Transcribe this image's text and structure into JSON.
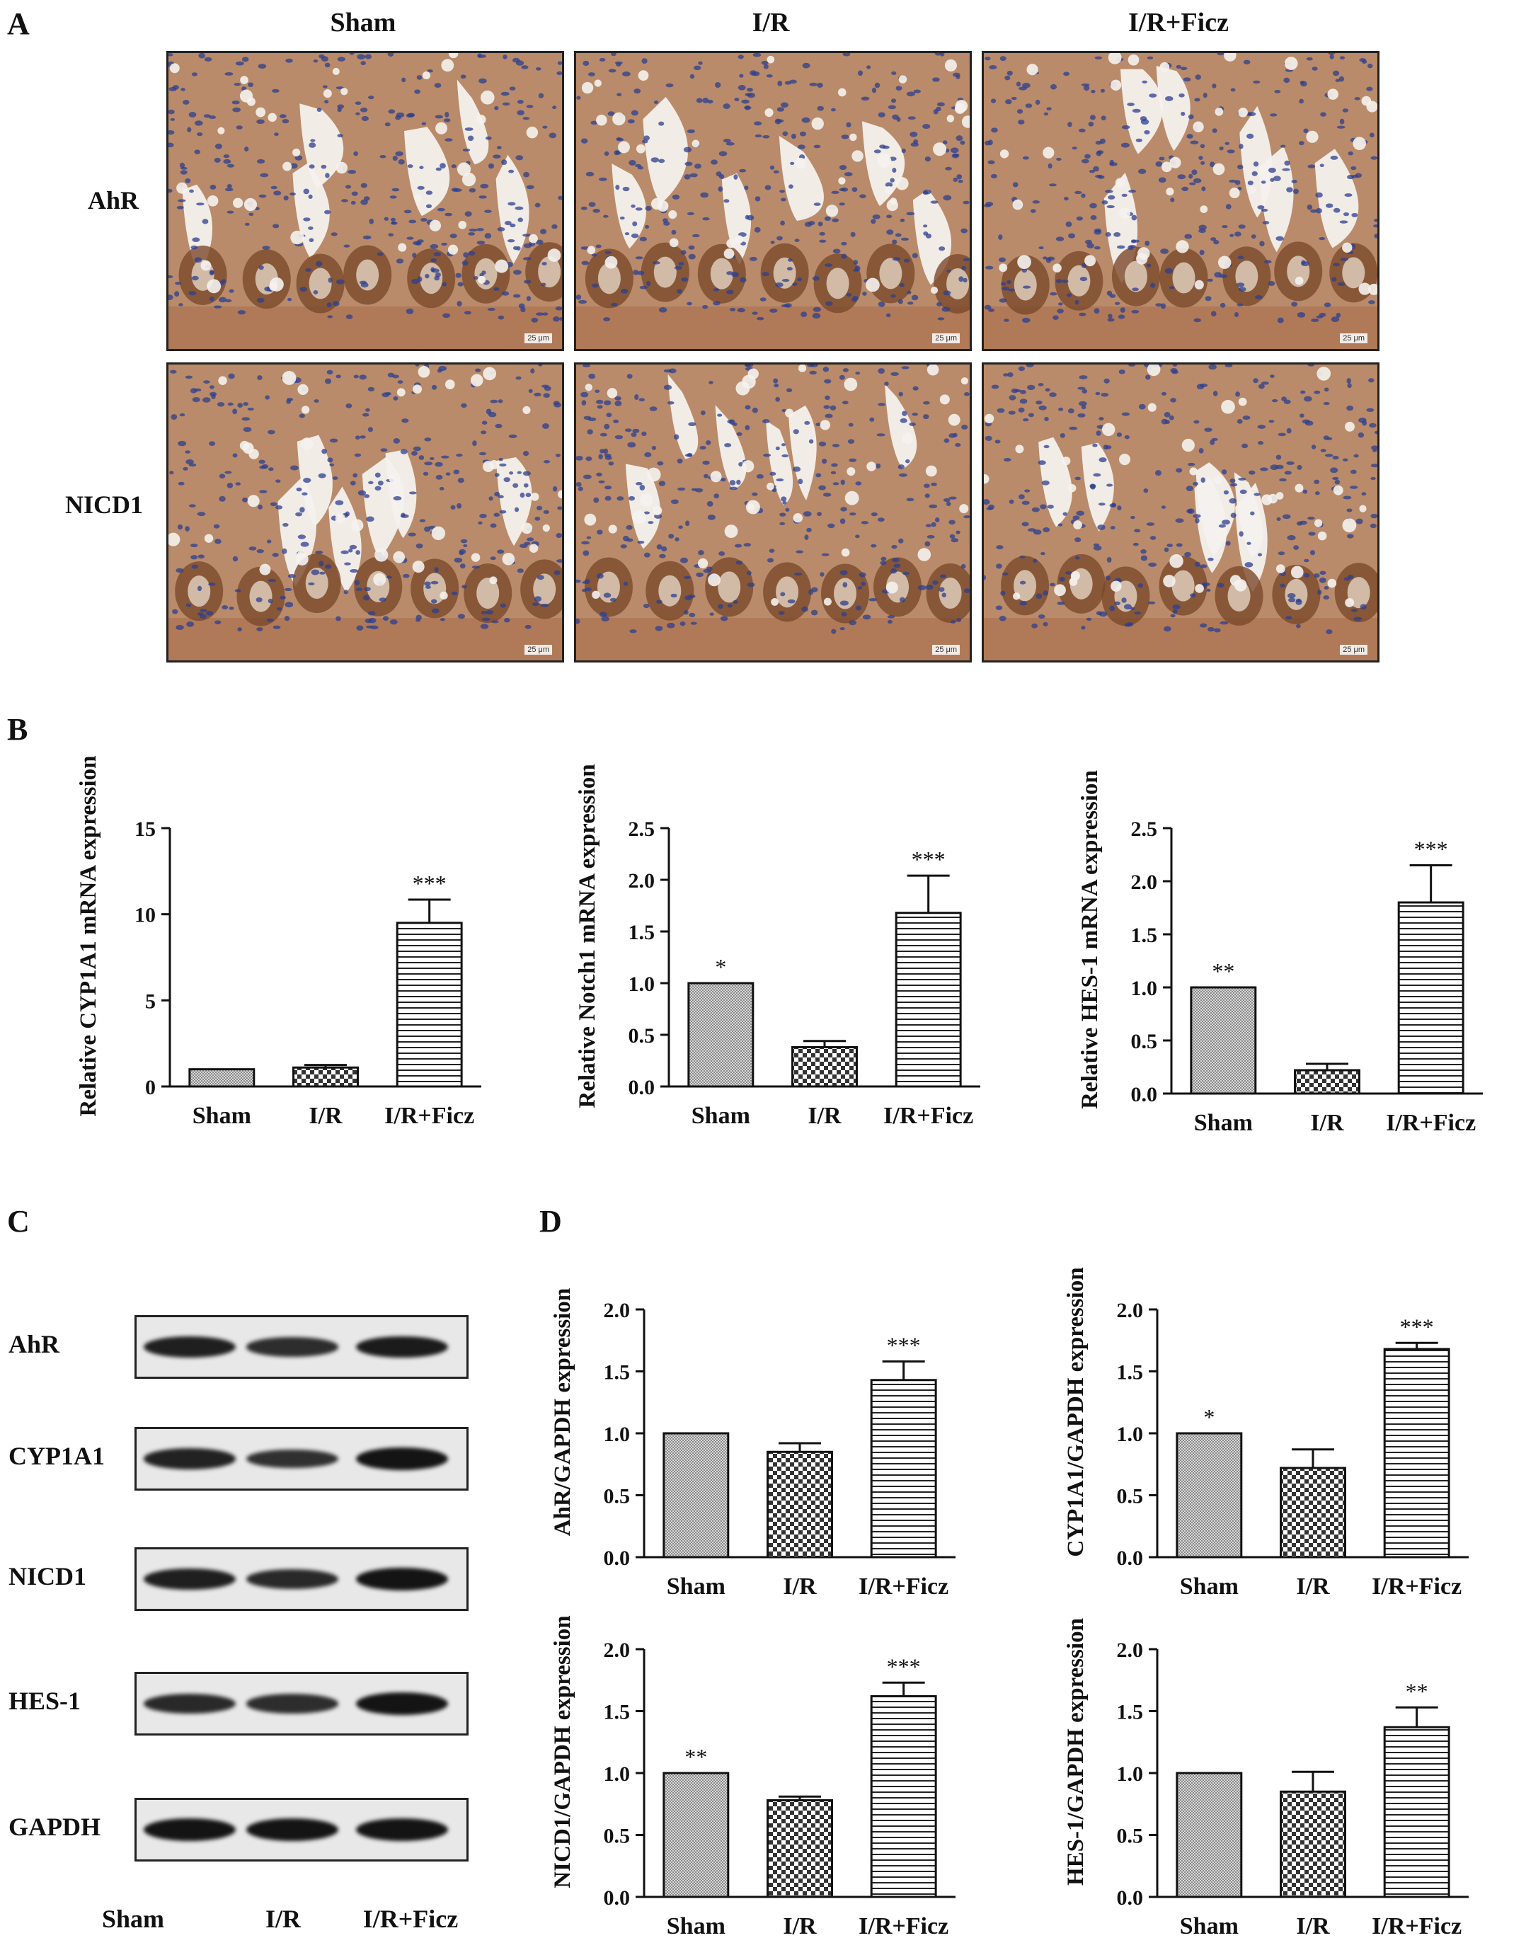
{
  "panels": {
    "a": "A",
    "b": "B",
    "c": "C",
    "d": "D"
  },
  "histology": {
    "columns": [
      "Sham",
      "I/R",
      "I/R+Ficz"
    ],
    "rows": [
      "AhR",
      "NICD1"
    ],
    "scale_label": "25 μm"
  },
  "colors": {
    "tissue_brown": "#9a5a32",
    "nuclei_blue": "#2c3f8f",
    "background": "#f4f1ee"
  },
  "chart_data": [
    {
      "type": "bar",
      "ylabel": "Relative CYP1A1 mRNA expression",
      "categories": [
        "Sham",
        "I/R",
        "I/R+Ficz"
      ],
      "values": [
        1.0,
        1.1,
        9.5
      ],
      "errors": [
        0,
        0.15,
        1.35
      ],
      "annotations": [
        "",
        "",
        "***"
      ],
      "ylim": [
        0,
        15
      ],
      "yticks": [
        0,
        5,
        10,
        15
      ],
      "ytick_labels": [
        "0",
        "5",
        "10",
        "15"
      ],
      "patterns": [
        "fine",
        "check",
        "hlines"
      ]
    },
    {
      "type": "bar",
      "ylabel": "Relative Notch1 mRNA expression",
      "categories": [
        "Sham",
        "I/R",
        "I/R+Ficz"
      ],
      "values": [
        1.0,
        0.38,
        1.68
      ],
      "errors": [
        0,
        0.06,
        0.36
      ],
      "annotations": [
        "*",
        "",
        "***"
      ],
      "ylim": [
        0,
        2.5
      ],
      "yticks": [
        0,
        0.5,
        1.0,
        1.5,
        2.0,
        2.5
      ],
      "ytick_labels": [
        "0.0",
        "0.5",
        "1.0",
        "1.5",
        "2.0",
        "2.5"
      ],
      "patterns": [
        "fine",
        "check",
        "hlines"
      ]
    },
    {
      "type": "bar",
      "ylabel": "Relative HES-1 mRNA expression",
      "categories": [
        "Sham",
        "I/R",
        "I/R+Ficz"
      ],
      "values": [
        1.0,
        0.22,
        1.8
      ],
      "errors": [
        0,
        0.06,
        0.35
      ],
      "annotations": [
        "**",
        "",
        "***"
      ],
      "ylim": [
        0,
        2.5
      ],
      "yticks": [
        0,
        0.5,
        1.0,
        1.5,
        2.0,
        2.5
      ],
      "ytick_labels": [
        "0.0",
        "0.5",
        "1.0",
        "1.5",
        "2.0",
        "2.5"
      ],
      "patterns": [
        "fine",
        "check",
        "hlines"
      ]
    },
    {
      "type": "bar",
      "ylabel": "AhR/GAPDH expression",
      "categories": [
        "Sham",
        "I/R",
        "I/R+Ficz"
      ],
      "values": [
        1.0,
        0.85,
        1.43
      ],
      "errors": [
        0,
        0.07,
        0.15
      ],
      "annotations": [
        "",
        "",
        "***"
      ],
      "ylim": [
        0,
        2.0
      ],
      "yticks": [
        0,
        0.5,
        1.0,
        1.5,
        2.0
      ],
      "ytick_labels": [
        "0.0",
        "0.5",
        "1.0",
        "1.5",
        "2.0"
      ],
      "patterns": [
        "fine",
        "check",
        "hlines"
      ]
    },
    {
      "type": "bar",
      "ylabel": "CYP1A1/GAPDH expression",
      "categories": [
        "Sham",
        "I/R",
        "I/R+Ficz"
      ],
      "values": [
        1.0,
        0.72,
        1.68
      ],
      "errors": [
        0,
        0.15,
        0.05
      ],
      "annotations": [
        "*",
        "",
        "***"
      ],
      "ylim": [
        0,
        2.0
      ],
      "yticks": [
        0,
        0.5,
        1.0,
        1.5,
        2.0
      ],
      "ytick_labels": [
        "0.0",
        "0.5",
        "1.0",
        "1.5",
        "2.0"
      ],
      "patterns": [
        "fine",
        "check",
        "hlines"
      ]
    },
    {
      "type": "bar",
      "ylabel": "NICD1/GAPDH expression",
      "categories": [
        "Sham",
        "I/R",
        "I/R+Ficz"
      ],
      "values": [
        1.0,
        0.78,
        1.62
      ],
      "errors": [
        0,
        0.03,
        0.11
      ],
      "annotations": [
        "**",
        "",
        "***"
      ],
      "ylim": [
        0,
        2.0
      ],
      "yticks": [
        0,
        0.5,
        1.0,
        1.5,
        2.0
      ],
      "ytick_labels": [
        "0.0",
        "0.5",
        "1.0",
        "1.5",
        "2.0"
      ],
      "patterns": [
        "fine",
        "check",
        "hlines"
      ]
    },
    {
      "type": "bar",
      "ylabel": "HES-1/GAPDH expression",
      "categories": [
        "Sham",
        "I/R",
        "I/R+Ficz"
      ],
      "values": [
        1.0,
        0.85,
        1.37
      ],
      "errors": [
        0,
        0.16,
        0.16
      ],
      "annotations": [
        "",
        "",
        "**"
      ],
      "ylim": [
        0,
        2.0
      ],
      "yticks": [
        0,
        0.5,
        1.0,
        1.5,
        2.0
      ],
      "ytick_labels": [
        "0.0",
        "0.5",
        "1.0",
        "1.5",
        "2.0"
      ],
      "patterns": [
        "fine",
        "check",
        "hlines"
      ]
    }
  ],
  "western": {
    "rows": [
      "AhR",
      "CYP1A1",
      "NICD1",
      "HES-1",
      "GAPDH"
    ],
    "lanes": [
      "Sham",
      "I/R",
      "I/R+Ficz"
    ],
    "intensity": [
      [
        0.85,
        0.65,
        0.9
      ],
      [
        0.8,
        0.6,
        1.0
      ],
      [
        0.85,
        0.7,
        1.0
      ],
      [
        0.7,
        0.65,
        1.0
      ],
      [
        1.0,
        1.0,
        1.0
      ]
    ]
  }
}
